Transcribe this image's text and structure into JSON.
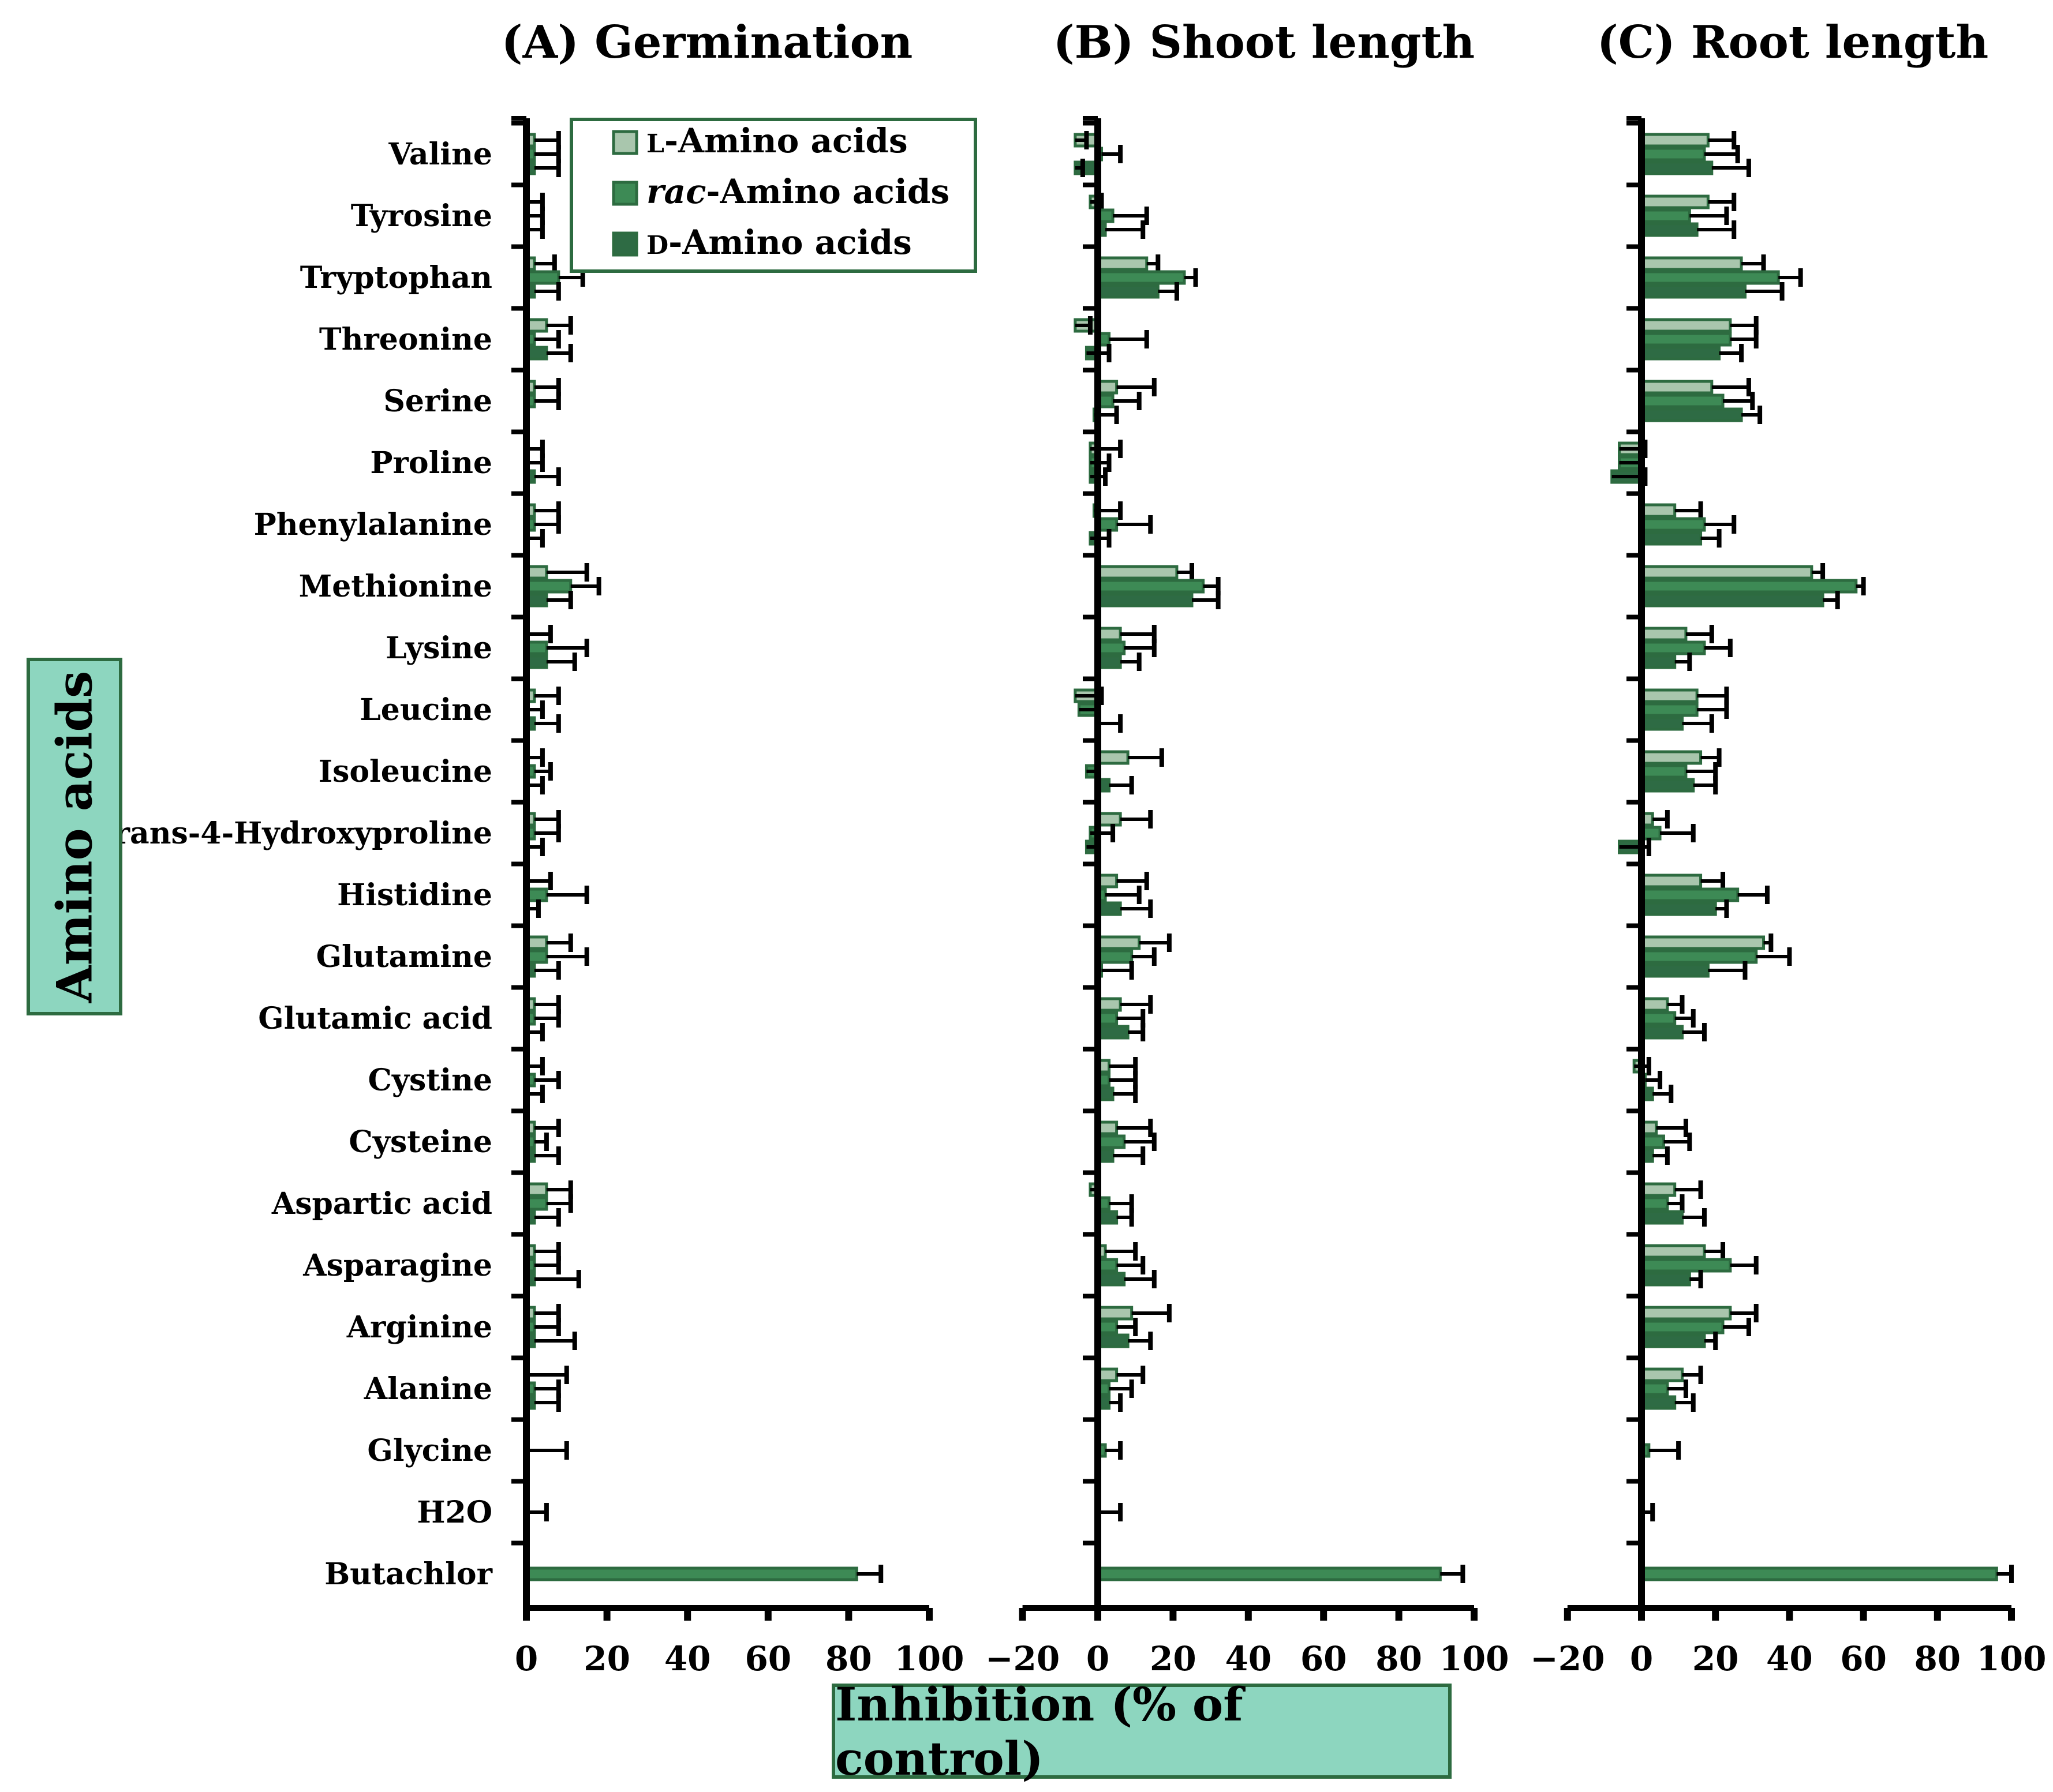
{
  "axis_labels": {
    "y": "Amino acids",
    "x": "Inhibition (% of control)"
  },
  "legend": [
    {
      "prefix": "L",
      "suffix": "-Amino acids",
      "key": "L",
      "color": "#a9c6ad"
    },
    {
      "prefix": "rac",
      "suffix": "-Amino acids",
      "key": "rac",
      "color": "#3d8a55"
    },
    {
      "prefix": "D",
      "suffix": "-Amino acids",
      "key": "D",
      "color": "#2e6b44"
    }
  ],
  "chart_data": [
    {
      "type": "bar",
      "orientation": "horizontal",
      "title": "(A) Germination",
      "xlabel": "Inhibition (% of control)",
      "ylabel": "Amino acids",
      "xlim": [
        0,
        100
      ],
      "xticks": [
        0,
        20,
        40,
        60,
        80,
        100
      ],
      "legend_position": "top-right",
      "categories": [
        "Valine",
        "Tyrosine",
        "Tryptophan",
        "Threonine",
        "Serine",
        "Proline",
        "Phenylalanine",
        "Methionine",
        "Lysine",
        "Leucine",
        "Isoleucine",
        "trans-4-Hydroxyproline",
        "Histidine",
        "Glutamine",
        "Glutamic acid",
        "Cystine",
        "Cysteine",
        "Aspartic acid",
        "Asparagine",
        "Arginine",
        "Alanine",
        "Glycine",
        "H2O",
        "Butachlor"
      ],
      "series": [
        {
          "name": "L-Amino acids",
          "values": [
            2,
            0,
            2,
            5,
            2,
            0,
            2,
            5,
            0,
            2,
            0,
            2,
            0,
            5,
            2,
            0,
            2,
            5,
            2,
            2,
            0,
            null,
            null,
            null
          ],
          "errors": [
            6,
            4,
            5,
            6,
            6,
            4,
            6,
            10,
            6,
            6,
            4,
            6,
            6,
            6,
            6,
            4,
            6,
            6,
            6,
            6,
            10,
            null,
            null,
            null
          ]
        },
        {
          "name": "rac-Amino acids",
          "values": [
            2,
            0,
            8,
            2,
            2,
            0,
            2,
            11,
            5,
            0,
            2,
            2,
            5,
            5,
            2,
            2,
            2,
            5,
            2,
            2,
            2,
            0,
            0,
            82
          ],
          "errors": [
            6,
            4,
            6,
            6,
            6,
            4,
            6,
            7,
            10,
            4,
            4,
            6,
            10,
            10,
            6,
            6,
            3,
            6,
            6,
            6,
            6,
            10,
            5,
            6
          ]
        },
        {
          "name": "D-Amino acids",
          "values": [
            2,
            0,
            2,
            5,
            0,
            2,
            0,
            5,
            5,
            2,
            0,
            0,
            0,
            2,
            0,
            0,
            2,
            2,
            2,
            2,
            2,
            null,
            null,
            null
          ],
          "errors": [
            6,
            4,
            6,
            6,
            0,
            6,
            4,
            6,
            7,
            6,
            4,
            4,
            3,
            6,
            4,
            4,
            6,
            6,
            11,
            10,
            6,
            null,
            null,
            null
          ]
        }
      ]
    },
    {
      "type": "bar",
      "orientation": "horizontal",
      "title": "(B) Shoot length",
      "xlabel": "Inhibition (% of control)",
      "xlim": [
        -20,
        100
      ],
      "xticks": [
        -20,
        0,
        20,
        40,
        60,
        80,
        100
      ],
      "categories": [
        "Valine",
        "Tyrosine",
        "Tryptophan",
        "Threonine",
        "Serine",
        "Proline",
        "Phenylalanine",
        "Methionine",
        "Lysine",
        "Leucine",
        "Isoleucine",
        "trans-4-Hydroxyproline",
        "Histidine",
        "Glutamine",
        "Glutamic acid",
        "Cystine",
        "Cysteine",
        "Aspartic acid",
        "Asparagine",
        "Arginine",
        "Alanine",
        "Glycine",
        "H2O",
        "Butachlor"
      ],
      "series": [
        {
          "name": "L-Amino acids",
          "values": [
            -6,
            -2,
            13,
            -6,
            5,
            -2,
            -1,
            21,
            6,
            -6,
            8,
            6,
            5,
            11,
            6,
            3,
            5,
            -2,
            2,
            9,
            5,
            null,
            null,
            null
          ],
          "errors": [
            3,
            3,
            3,
            4,
            10,
            8,
            7,
            4,
            9,
            7,
            9,
            8,
            8,
            8,
            8,
            7,
            9,
            2,
            8,
            10,
            7,
            null,
            null,
            null
          ]
        },
        {
          "name": "rac-Amino acids",
          "values": [
            1,
            4,
            23,
            3,
            4,
            -2,
            5,
            28,
            7,
            -5,
            -3,
            -2,
            2,
            9,
            5,
            3,
            7,
            3,
            5,
            5,
            3,
            2,
            0,
            91
          ],
          "errors": [
            5,
            9,
            3,
            10,
            7,
            5,
            9,
            4,
            8,
            5,
            3,
            6,
            9,
            6,
            7,
            7,
            8,
            6,
            7,
            5,
            6,
            4,
            6,
            6
          ]
        },
        {
          "name": "D-Amino acids",
          "values": [
            -6,
            2,
            16,
            -3,
            -1,
            -2,
            -2,
            25,
            6,
            0,
            3,
            -3,
            6,
            1,
            8,
            4,
            4,
            5,
            7,
            8,
            3,
            null,
            null,
            null
          ],
          "errors": [
            2,
            10,
            5,
            6,
            6,
            4,
            5,
            7,
            5,
            6,
            6,
            3,
            8,
            8,
            4,
            6,
            8,
            4,
            8,
            6,
            3,
            null,
            null,
            null
          ]
        }
      ]
    },
    {
      "type": "bar",
      "orientation": "horizontal",
      "title": "(C) Root length",
      "xlabel": "Inhibition (% of control)",
      "xlim": [
        -20,
        100
      ],
      "xticks": [
        -20,
        0,
        20,
        40,
        60,
        80,
        100
      ],
      "categories": [
        "Valine",
        "Tyrosine",
        "Tryptophan",
        "Threonine",
        "Serine",
        "Proline",
        "Phenylalanine",
        "Methionine",
        "Lysine",
        "Leucine",
        "Isoleucine",
        "trans-4-Hydroxyproline",
        "Histidine",
        "Glutamine",
        "Glutamic acid",
        "Cystine",
        "Cysteine",
        "Aspartic acid",
        "Asparagine",
        "Arginine",
        "Alanine",
        "Glycine",
        "H2O",
        "Butachlor"
      ],
      "series": [
        {
          "name": "L-Amino acids",
          "values": [
            18,
            18,
            27,
            24,
            19,
            -6,
            9,
            46,
            12,
            15,
            16,
            3,
            16,
            33,
            7,
            -2,
            4,
            9,
            17,
            24,
            11,
            null,
            null,
            null
          ],
          "errors": [
            7,
            7,
            6,
            7,
            10,
            7,
            7,
            3,
            7,
            8,
            5,
            4,
            6,
            2,
            4,
            4,
            8,
            7,
            5,
            7,
            5,
            null,
            null,
            null
          ]
        },
        {
          "name": "rac-Amino acids",
          "values": [
            17,
            13,
            37,
            24,
            22,
            -6,
            17,
            58,
            17,
            15,
            12,
            5,
            26,
            31,
            9,
            1,
            6,
            7,
            24,
            22,
            7,
            2,
            0,
            96
          ],
          "errors": [
            9,
            10,
            6,
            7,
            8,
            6,
            8,
            2,
            7,
            8,
            8,
            9,
            8,
            9,
            5,
            4,
            7,
            4,
            7,
            7,
            5,
            8,
            3,
            4
          ]
        },
        {
          "name": "D-Amino acids",
          "values": [
            19,
            15,
            28,
            21,
            27,
            -8,
            16,
            49,
            9,
            11,
            14,
            -6,
            20,
            18,
            11,
            3,
            3,
            11,
            13,
            17,
            9,
            null,
            null,
            null
          ],
          "errors": [
            10,
            10,
            10,
            6,
            5,
            9,
            5,
            4,
            4,
            8,
            6,
            8,
            3,
            10,
            6,
            5,
            4,
            6,
            3,
            3,
            5,
            null,
            null,
            null
          ]
        }
      ]
    }
  ]
}
